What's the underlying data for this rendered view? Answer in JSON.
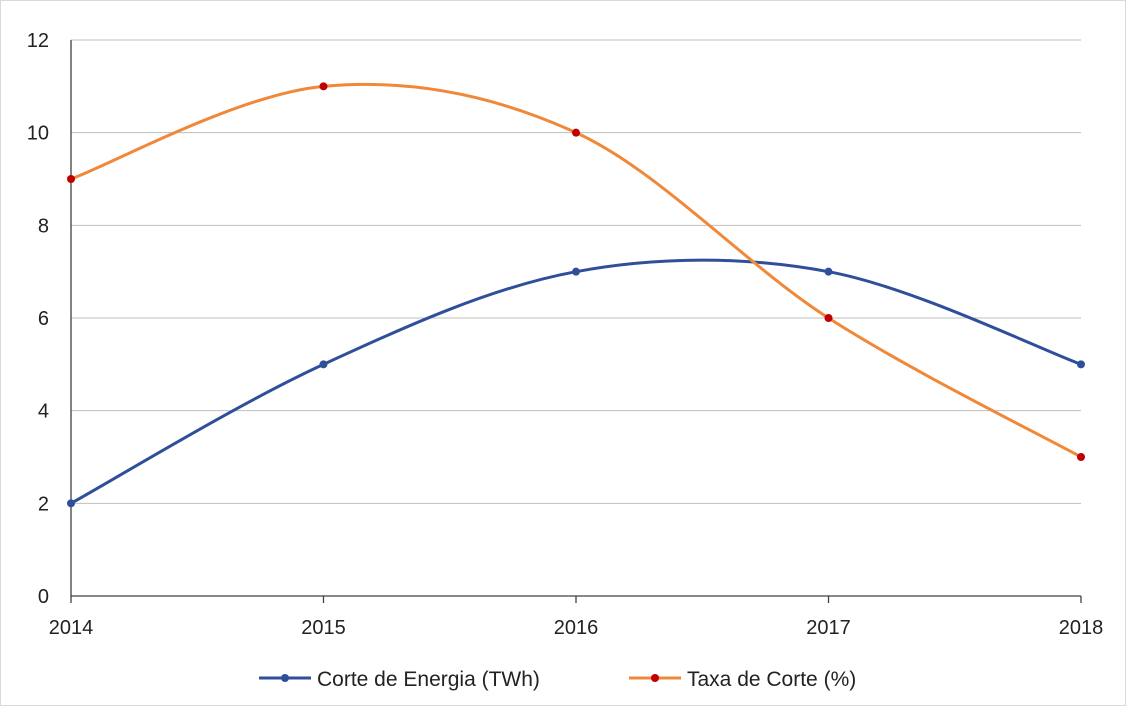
{
  "chart_data": {
    "type": "line",
    "title": "",
    "xlabel": "",
    "ylabel": "",
    "x": [
      "2014",
      "2015",
      "2016",
      "2017",
      "2018"
    ],
    "ylim": [
      0,
      12
    ],
    "yticks": [
      0,
      2,
      4,
      6,
      8,
      10,
      12
    ],
    "grid": "horizontal",
    "smooth": true,
    "legend_position": "bottom",
    "series": [
      {
        "name": "Corte de Energia (TWh)",
        "values": [
          2,
          5,
          7,
          7,
          5
        ],
        "color": "#2f4f9a",
        "marker_color": "#2f4f9a"
      },
      {
        "name": "Taxa de Corte (%)",
        "values": [
          9,
          11,
          10,
          6,
          3
        ],
        "color": "#f0883a",
        "marker_color": "#c00000"
      }
    ]
  }
}
